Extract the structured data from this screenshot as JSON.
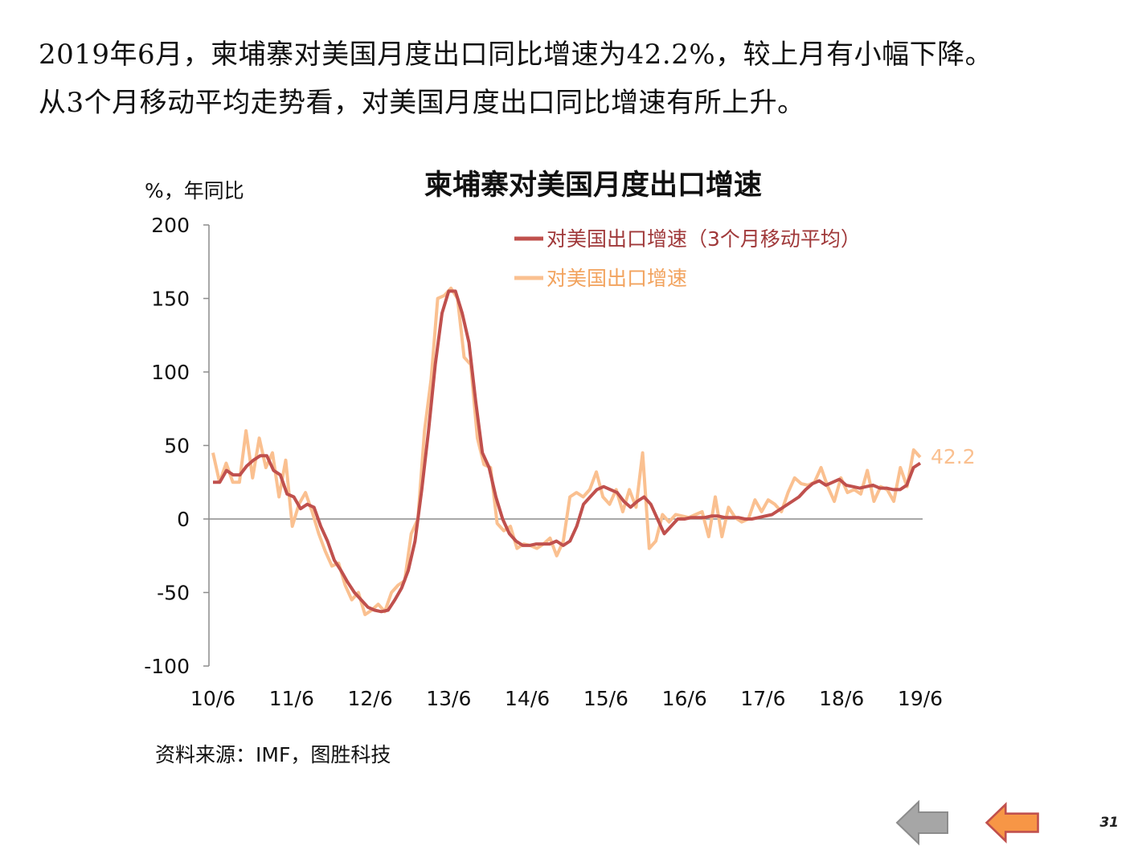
{
  "headline": {
    "line1": "2019年6月，柬埔寨对美国月度出口同比增速为42.2%，较上月有小幅下降。",
    "line2": "从3个月移动平均走势看，对美国月度出口同比增速有所上升。"
  },
  "chart_data": {
    "type": "line",
    "title": "柬埔寨对美国月度出口增速",
    "ylabel": "%，年同比",
    "ylim": [
      -100,
      200
    ],
    "yticks": [
      "200",
      "150",
      "100",
      "50",
      "0",
      "-50",
      "-100"
    ],
    "xticks": [
      "10/6",
      "11/6",
      "12/6",
      "13/6",
      "14/6",
      "15/6",
      "16/6",
      "17/6",
      "18/6",
      "19/6"
    ],
    "legend_position": "top-right",
    "end_label": "42.2",
    "series": [
      {
        "name": "对美国出口增速（3个月移动平均）",
        "color": "#c0504d",
        "values": [
          25,
          25,
          33,
          30,
          30,
          36,
          40,
          43,
          43,
          33,
          30,
          17,
          15,
          7,
          10,
          8,
          -5,
          -15,
          -28,
          -35,
          -43,
          -50,
          -55,
          -60,
          -62,
          -63,
          -62,
          -55,
          -47,
          -35,
          -15,
          20,
          60,
          105,
          140,
          155,
          155,
          140,
          120,
          80,
          45,
          35,
          15,
          0,
          -10,
          -15,
          -18,
          -18,
          -17,
          -17,
          -17,
          -15,
          -18,
          -15,
          -5,
          10,
          15,
          20,
          22,
          20,
          18,
          12,
          8,
          12,
          15,
          10,
          0,
          -10,
          -5,
          0,
          0,
          1,
          1,
          1,
          2,
          2,
          1,
          1,
          1,
          0,
          0,
          1,
          2,
          3,
          6,
          9,
          12,
          15,
          20,
          24,
          26,
          23,
          25,
          27,
          23,
          22,
          21,
          22,
          23,
          21,
          21,
          20,
          20,
          23,
          35,
          38
        ]
      },
      {
        "name": "对美国出口增速",
        "color": "#fac090",
        "values": [
          45,
          25,
          38,
          25,
          25,
          60,
          28,
          55,
          35,
          45,
          15,
          40,
          -5,
          10,
          18,
          5,
          -10,
          -22,
          -32,
          -30,
          -45,
          -55,
          -50,
          -65,
          -62,
          -58,
          -63,
          -50,
          -45,
          -42,
          -10,
          0,
          60,
          95,
          150,
          152,
          157,
          150,
          110,
          105,
          55,
          37,
          35,
          -3,
          -8,
          -5,
          -20,
          -17,
          -18,
          -20,
          -17,
          -13,
          -25,
          -15,
          15,
          18,
          15,
          20,
          32,
          15,
          10,
          20,
          5,
          20,
          8,
          45,
          -20,
          -15,
          3,
          -2,
          3,
          2,
          1,
          3,
          5,
          -12,
          15,
          -12,
          8,
          1,
          -2,
          0,
          13,
          5,
          13,
          10,
          5,
          18,
          28,
          24,
          23,
          25,
          35,
          22,
          12,
          28,
          18,
          20,
          17,
          33,
          12,
          22,
          20,
          12,
          35,
          22,
          47,
          42
        ]
      }
    ]
  },
  "source": "资料来源：IMF，图胜科技",
  "nav": {
    "back_color": "#a6a6a6",
    "forward_color": "#f79646"
  },
  "page_number": "31"
}
